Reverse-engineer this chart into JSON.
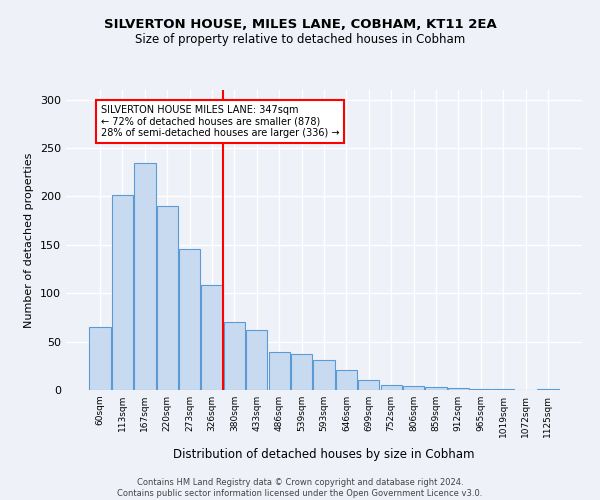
{
  "title": "SILVERTON HOUSE, MILES LANE, COBHAM, KT11 2EA",
  "subtitle": "Size of property relative to detached houses in Cobham",
  "xlabel": "Distribution of detached houses by size in Cobham",
  "ylabel": "Number of detached properties",
  "categories": [
    "60sqm",
    "113sqm",
    "167sqm",
    "220sqm",
    "273sqm",
    "326sqm",
    "380sqm",
    "433sqm",
    "486sqm",
    "539sqm",
    "593sqm",
    "646sqm",
    "699sqm",
    "752sqm",
    "806sqm",
    "859sqm",
    "912sqm",
    "965sqm",
    "1019sqm",
    "1072sqm",
    "1125sqm"
  ],
  "values": [
    65,
    202,
    235,
    190,
    146,
    109,
    70,
    62,
    39,
    37,
    31,
    21,
    10,
    5,
    4,
    3,
    2,
    1,
    1,
    0,
    1
  ],
  "bar_color": "#c8daf0",
  "bar_edge_color": "#5b9bd5",
  "vline_x": 5.5,
  "vline_color": "red",
  "annotation_title": "SILVERTON HOUSE MILES LANE: 347sqm",
  "annotation_line1": "← 72% of detached houses are smaller (878)",
  "annotation_line2": "28% of semi-detached houses are larger (336) →",
  "annotation_box_color": "red",
  "annotation_text_color": "black",
  "ylim": [
    0,
    310
  ],
  "yticks": [
    0,
    50,
    100,
    150,
    200,
    250,
    300
  ],
  "footer_line1": "Contains HM Land Registry data © Crown copyright and database right 2024.",
  "footer_line2": "Contains public sector information licensed under the Open Government Licence v3.0.",
  "bg_color": "#eef2f8",
  "plot_bg_color": "#eef2f8"
}
